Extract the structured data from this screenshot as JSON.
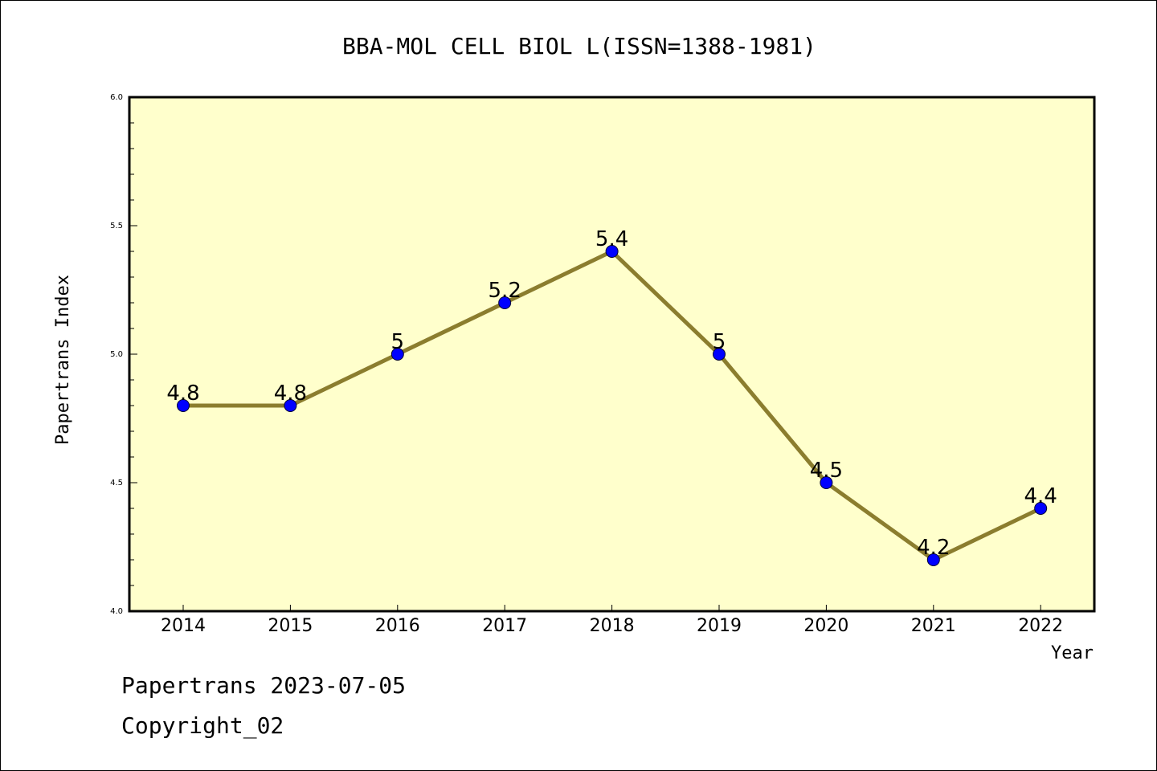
{
  "chart_data": {
    "type": "line",
    "title": "BBA-MOL CELL BIOL L(ISSN=1388-1981)",
    "xlabel": "Year",
    "ylabel": "Papertrans Index",
    "categories": [
      "2014",
      "2015",
      "2016",
      "2017",
      "2018",
      "2019",
      "2020",
      "2021",
      "2022"
    ],
    "series": [
      {
        "values": [
          4.8,
          4.8,
          5.0,
          5.2,
          5.4,
          5.0,
          4.5,
          4.2,
          4.4
        ],
        "data_labels": [
          "4.8",
          "4.8",
          "5",
          "5.2",
          "5.4",
          "5",
          "4.5",
          "4.2",
          "4.4"
        ]
      }
    ],
    "ylim": [
      4.0,
      6.0
    ],
    "yticks": [
      "4.0",
      "4.5",
      "5.0",
      "5.5",
      "6.0"
    ],
    "grid": false,
    "colors": {
      "plot_background": "#ffffcc",
      "line": "#8b7d2e",
      "marker": "#0000ff"
    }
  },
  "footer": {
    "line1": "Papertrans 2023-07-05",
    "line2": "Copyright_02"
  }
}
